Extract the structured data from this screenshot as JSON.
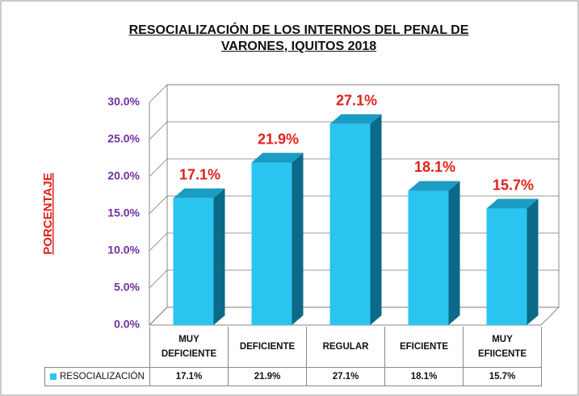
{
  "chart_data": {
    "type": "bar",
    "title": "RESOCIALIZACIÓN DE LOS INTERNOS DEL PENAL DE VARONES, IQUITOS 2018",
    "y_label": "PORCENTAJE",
    "categories": [
      "MUY DEFICIENTE",
      "DEFICIENTE",
      "REGULAR",
      "EFICIENTE",
      "MUY EFIICENTE"
    ],
    "series": [
      {
        "name": "RESOCIALIZACIÓN",
        "color": "#29c5f0",
        "values": [
          17.1,
          21.9,
          27.1,
          18.1,
          15.7
        ],
        "value_labels": [
          "17.1%",
          "21.9%",
          "27.1%",
          "18.1%",
          "15.7%"
        ]
      }
    ],
    "ylim": [
      0,
      30
    ],
    "yticks": [
      {
        "value": 0,
        "label": "0.0%"
      },
      {
        "value": 5,
        "label": "5.0%"
      },
      {
        "value": 10,
        "label": "10.0%"
      },
      {
        "value": 15,
        "label": "15.0%"
      },
      {
        "value": 20,
        "label": "20.0%"
      },
      {
        "value": 25,
        "label": "25.0%"
      },
      {
        "value": 30,
        "label": "30.0%"
      }
    ],
    "grid": true
  }
}
